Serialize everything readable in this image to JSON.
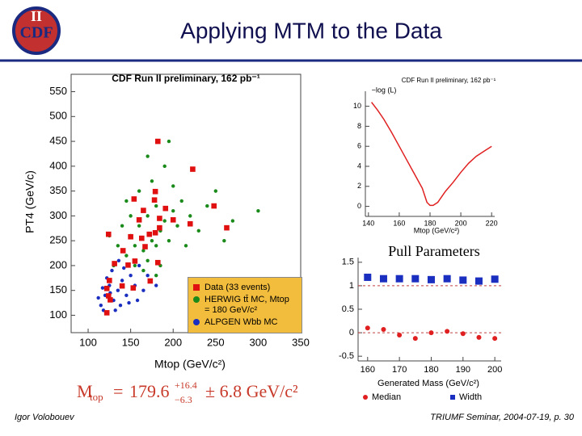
{
  "header": {
    "title": "Applying MTM to the Data",
    "logo": {
      "text": "CDF",
      "numeral": "II"
    }
  },
  "chart_data": [
    {
      "type": "scatter",
      "title": "CDF Run II preliminary, 162 pb⁻¹",
      "x_label": "Mtop (GeV/c²)",
      "y_label": "PT4 (GeV/c)",
      "xlim": [
        80,
        350
      ],
      "xticks": [
        100,
        150,
        200,
        250,
        300,
        350
      ],
      "ylim": [
        65,
        585
      ],
      "yticks": [
        100,
        150,
        200,
        250,
        300,
        350,
        400,
        450,
        500,
        550
      ],
      "grid": false,
      "legend": "lower right",
      "series": [
        {
          "name": "HERWIG tt̄ MC, Mtop = 180 GeV/c²",
          "color": "#1a8a1a",
          "marker": "circle",
          "x": [
            150,
            160,
            170,
            180,
            175,
            165,
            185,
            190,
            200,
            155,
            145,
            170,
            180,
            195,
            205,
            210,
            160,
            175,
            190,
            150,
            140,
            220,
            230,
            240,
            200,
            185,
            165,
            155,
            135,
            125,
            215,
            250,
            270,
            170,
            195,
            145,
            130,
            260,
            300,
            180
          ],
          "values": [
            260,
            280,
            300,
            320,
            250,
            230,
            270,
            290,
            310,
            240,
            220,
            210,
            240,
            250,
            280,
            330,
            350,
            370,
            400,
            300,
            280,
            300,
            270,
            320,
            360,
            200,
            190,
            200,
            240,
            260,
            240,
            350,
            290,
            420,
            450,
            330,
            200,
            250,
            310,
            180
          ]
        },
        {
          "name": "ALPGEN Wbb MC",
          "color": "#1a2ec0",
          "marker": "circle",
          "x": [
            115,
            120,
            125,
            130,
            135,
            140,
            118,
            145,
            150,
            128,
            122,
            138,
            155,
            160,
            112,
            132,
            142,
            165,
            148,
            126,
            170,
            136,
            117,
            158,
            180
          ],
          "values": [
            120,
            140,
            160,
            130,
            150,
            170,
            110,
            140,
            180,
            190,
            175,
            120,
            160,
            200,
            135,
            110,
            195,
            150,
            125,
            145,
            180,
            210,
            155,
            130,
            160
          ]
        },
        {
          "name": "Data (33 events)",
          "color": "#e01010",
          "marker": "square",
          "x": [
            182,
            223,
            179,
            154,
            178,
            165,
            191,
            248,
            160,
            184,
            200,
            220,
            263,
            124,
            150,
            163,
            172,
            179,
            184,
            167,
            141,
            131,
            147,
            155,
            182,
            125,
            140,
            153,
            173,
            122,
            124,
            126,
            122
          ],
          "values": [
            450,
            394,
            349,
            334,
            332,
            311,
            315,
            320,
            292,
            295,
            292,
            284,
            276,
            263,
            258,
            255,
            263,
            266,
            276,
            238,
            230,
            204,
            201,
            209,
            206,
            170,
            159,
            155,
            169,
            154,
            139,
            131,
            105
          ]
        }
      ],
      "result": {
        "symbol": "M",
        "subscript": "top",
        "equals": "=",
        "value": "179.6",
        "upper": "+16.4",
        "lower": "−6.3",
        "error": "± 6.8 GeV/c²"
      }
    },
    {
      "type": "line",
      "title": "CDF Run II preliminary, 162 pb⁻¹",
      "x_label": "Mtop (GeV/c²)",
      "y_label": "−log (L)",
      "xlim": [
        138,
        222
      ],
      "xticks": [
        140,
        160,
        180,
        200,
        220
      ],
      "ylim": [
        -1,
        11.5
      ],
      "yticks": [
        0,
        2,
        4,
        6,
        8,
        10
      ],
      "grid": false,
      "series": [
        {
          "color": "#e02020",
          "x": [
            142,
            146,
            150,
            155,
            160,
            165,
            170,
            175,
            178,
            180,
            182,
            185,
            190,
            195,
            200,
            205,
            210,
            215,
            220
          ],
          "values": [
            10.4,
            9.6,
            8.7,
            7.4,
            6.0,
            4.6,
            3.2,
            1.8,
            0.4,
            0.1,
            0.1,
            0.4,
            1.5,
            2.4,
            3.4,
            4.3,
            5.0,
            5.5,
            6.0
          ]
        }
      ]
    },
    {
      "type": "scatter",
      "title": "Pull Parameters",
      "x_label": "Generated Mass (GeV/c²)",
      "xlim": [
        157,
        202
      ],
      "xticks": [
        160,
        170,
        180,
        190,
        200
      ],
      "ylim": [
        -0.6,
        1.6
      ],
      "yticks": [
        -0.5,
        0,
        0.5,
        1,
        1.5
      ],
      "grid": false,
      "reference_lines": [
        0,
        1
      ],
      "legend": "bottom",
      "series": [
        {
          "name": "Median",
          "color": "#e02020",
          "marker": "circle",
          "x": [
            160,
            165,
            170,
            175,
            180,
            185,
            190,
            195,
            200
          ],
          "values": [
            0.1,
            0.07,
            -0.05,
            -0.12,
            0,
            0.03,
            -0.02,
            -0.1,
            -0.12
          ]
        },
        {
          "name": "Width",
          "color": "#1a2ec0",
          "marker": "square",
          "x": [
            160,
            165,
            170,
            175,
            180,
            185,
            190,
            195,
            200
          ],
          "values": [
            1.18,
            1.15,
            1.15,
            1.15,
            1.13,
            1.15,
            1.12,
            1.1,
            1.14
          ]
        }
      ]
    }
  ],
  "footer": {
    "author": "Igor Volobouev",
    "event": "TRIUMF Seminar, 2004-07-19, p. 30"
  }
}
